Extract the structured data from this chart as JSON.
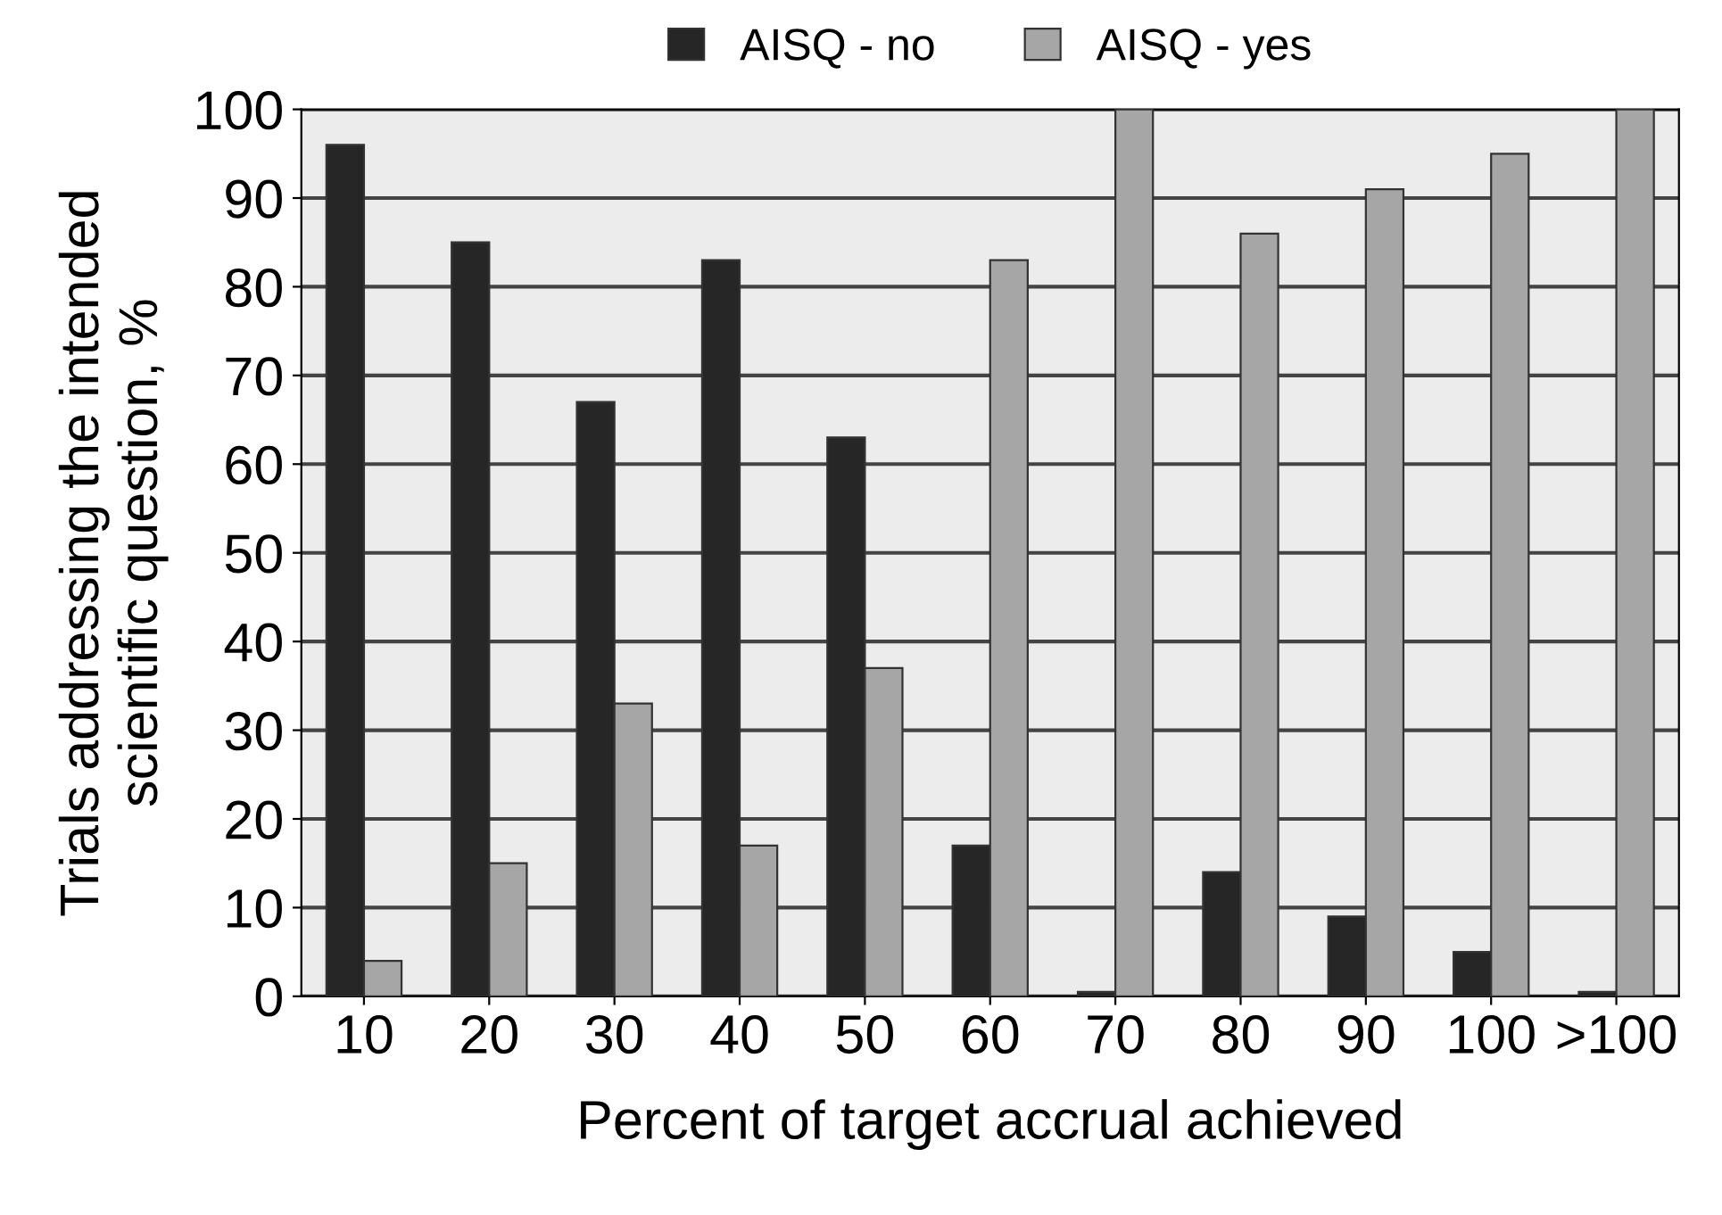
{
  "chart_data": {
    "type": "bar",
    "xlabel": "Percent of target accrual achieved",
    "ylabel": "Trials addressing the intended\nscientific question, %",
    "categories": [
      "10",
      "20",
      "30",
      "40",
      "50",
      "60",
      "70",
      "80",
      "90",
      "100",
      ">100"
    ],
    "series": [
      {
        "name": "AISQ - no",
        "color": "#262626",
        "values": [
          96,
          85,
          67,
          83,
          63,
          17,
          0.5,
          14,
          9,
          5,
          0.5
        ]
      },
      {
        "name": "AISQ - yes",
        "color": "#a6a6a6",
        "values": [
          4,
          15,
          33,
          17,
          37,
          83,
          100,
          86,
          91,
          95,
          100
        ]
      }
    ],
    "ylim": [
      0,
      100
    ],
    "yticks": [
      0,
      10,
      20,
      30,
      40,
      50,
      60,
      70,
      80,
      90,
      100
    ],
    "grid": "y",
    "legend": "top"
  }
}
